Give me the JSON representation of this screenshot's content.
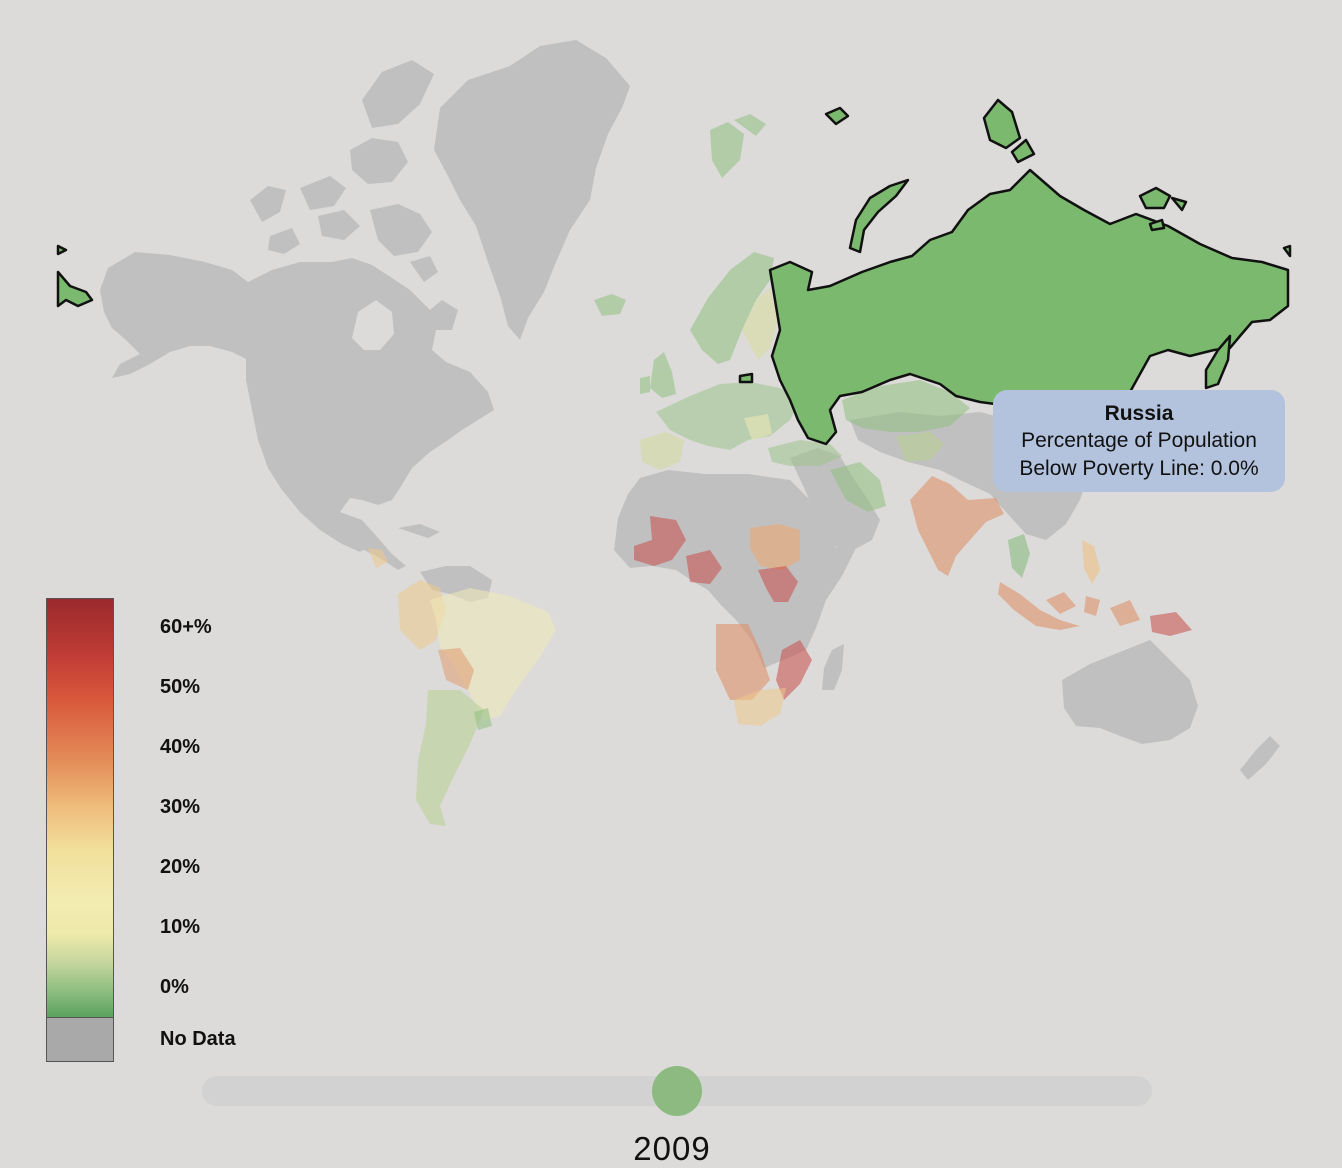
{
  "tooltip": {
    "country": "Russia",
    "line1": "Percentage of Population",
    "line2": "Below Poverty Line: 0.0%"
  },
  "legend": {
    "labels": [
      "60+%",
      "50%",
      "40%",
      "30%",
      "20%",
      "10%",
      "0%"
    ],
    "no_data_label": "No Data",
    "colors": {
      "max": "#9a2a2c",
      "mid_high": "#d9583c",
      "mid": "#efbd7c",
      "low": "#f2ecb0",
      "zero": "#5aa25e",
      "no_data": "#a9a9a9"
    }
  },
  "slider": {
    "year": "2009"
  },
  "highlighted_country": "Russia",
  "highlight_color": "#7bb96e"
}
